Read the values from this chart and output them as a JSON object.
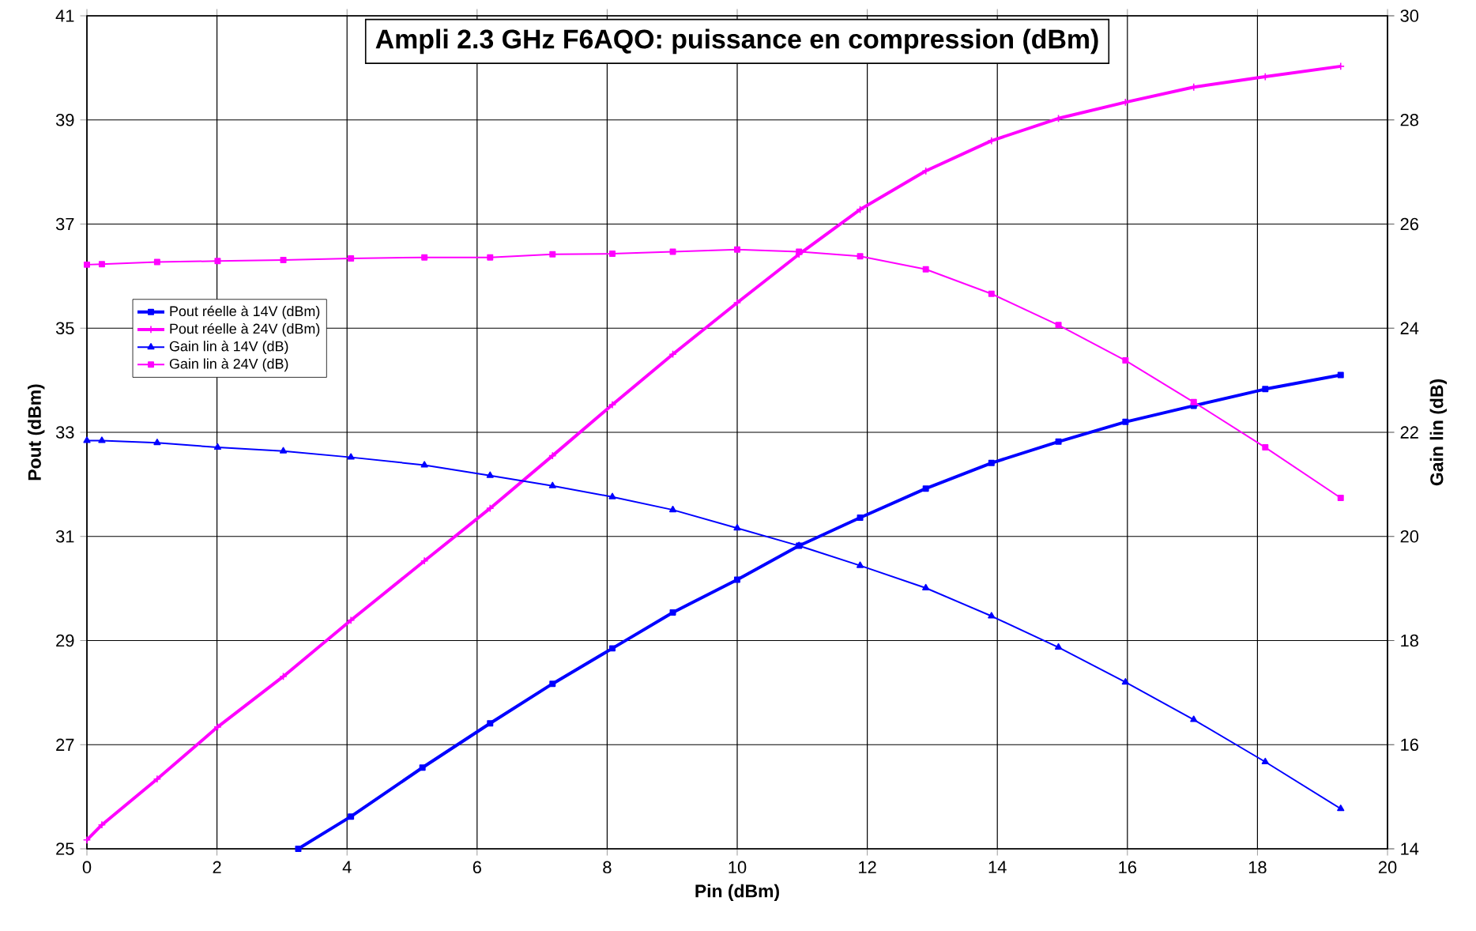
{
  "chart_data": {
    "type": "line",
    "title": "Ampli 2.3 GHz F6AQO: puissance en compression (dBm)",
    "xlabel": "Pin (dBm)",
    "ylabel": "Pout (dBm)",
    "y2label": "Gain lin (dB)",
    "xlim": [
      0,
      20
    ],
    "xticks": [
      0,
      2,
      4,
      6,
      8,
      10,
      12,
      14,
      16,
      18,
      20
    ],
    "ylim": [
      25,
      41
    ],
    "yticks": [
      25,
      27,
      29,
      31,
      33,
      35,
      37,
      39,
      41
    ],
    "y2lim": [
      14,
      30
    ],
    "y2ticks": [
      14,
      16,
      18,
      20,
      22,
      24,
      26,
      28,
      30
    ],
    "grid": true,
    "legend": "left",
    "series": [
      {
        "name": "Pout réelle à 14V (dBm)",
        "color": "#0000ff",
        "axis": "y",
        "marker": "square",
        "x": [
          3.25,
          4.06,
          5.16,
          6.2,
          7.16,
          8.08,
          9.01,
          10.0,
          10.95,
          11.89,
          12.9,
          13.91,
          14.94,
          15.97,
          17.02,
          18.12,
          19.28
        ],
        "values": [
          25.0,
          25.62,
          26.56,
          27.41,
          28.17,
          28.85,
          29.54,
          30.17,
          30.82,
          31.36,
          31.92,
          32.41,
          32.82,
          33.2,
          33.51,
          33.83,
          34.1
        ]
      },
      {
        "name": "Pout réelle à 24V (dBm)",
        "color": "#ff00ff",
        "axis": "y",
        "marker": "cross",
        "x": [
          0,
          0.23,
          1.08,
          2.01,
          3.02,
          4.06,
          5.19,
          6.2,
          7.16,
          8.08,
          9.01,
          10.0,
          10.95,
          11.89,
          12.9,
          13.91,
          14.94,
          15.97,
          17.02,
          18.12,
          19.28
        ],
        "values": [
          25.17,
          25.46,
          26.34,
          27.34,
          28.31,
          29.39,
          30.53,
          31.54,
          32.55,
          33.53,
          34.5,
          35.49,
          36.42,
          37.28,
          38.02,
          38.6,
          39.03,
          39.34,
          39.63,
          39.83,
          40.03
        ]
      },
      {
        "name": "Gain lin à 14V (dB)",
        "color": "#0000ff",
        "axis": "y2",
        "marker": "triangle",
        "x": [
          0,
          0.23,
          1.08,
          2.01,
          3.02,
          4.06,
          5.19,
          6.2,
          7.16,
          8.08,
          9.01,
          10.0,
          10.95,
          11.89,
          12.9,
          13.91,
          14.94,
          15.97,
          17.02,
          18.12,
          19.28
        ],
        "values": [
          21.84,
          21.84,
          21.8,
          21.71,
          21.64,
          21.52,
          21.37,
          21.17,
          20.97,
          20.76,
          20.51,
          20.16,
          19.82,
          19.44,
          19.01,
          18.47,
          17.87,
          17.2,
          16.48,
          15.67,
          14.77
        ]
      },
      {
        "name": "Gain lin à 24V (dB)",
        "color": "#ff00ff",
        "axis": "y2",
        "marker": "square",
        "x": [
          0,
          0.23,
          1.08,
          2.01,
          3.02,
          4.06,
          5.19,
          6.2,
          7.16,
          8.08,
          9.01,
          10.0,
          10.95,
          11.89,
          12.9,
          13.91,
          14.94,
          15.97,
          17.02,
          18.12,
          19.28
        ],
        "values": [
          25.22,
          25.23,
          25.27,
          25.29,
          25.31,
          25.34,
          25.36,
          25.36,
          25.42,
          25.43,
          25.47,
          25.51,
          25.47,
          25.38,
          25.13,
          24.66,
          24.06,
          23.38,
          22.58,
          21.71,
          20.74
        ]
      }
    ]
  }
}
